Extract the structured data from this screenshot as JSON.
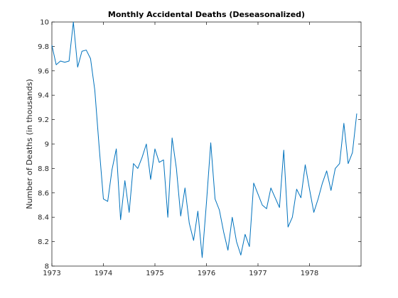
{
  "chart_data": {
    "type": "line",
    "title": "Monthly Accidental Deaths (Deseasonalized)",
    "xlabel": "",
    "ylabel": "Number of Deaths (in thousands)",
    "xlim": [
      1973,
      1979
    ],
    "ylim": [
      8,
      10
    ],
    "xticks": [
      1973,
      1974,
      1975,
      1976,
      1977,
      1978
    ],
    "yticks": [
      8,
      8.2,
      8.4,
      8.6,
      8.8,
      9,
      9.2,
      9.4,
      9.6,
      9.8,
      10
    ],
    "grid": false,
    "color": "#0072bd",
    "series": [
      {
        "x": [
          1973.0,
          1973.0833,
          1973.1667,
          1973.25,
          1973.3333,
          1973.4167,
          1973.5,
          1973.5833,
          1973.6667,
          1973.75,
          1973.8333,
          1973.9167,
          1974.0,
          1974.0833,
          1974.1667,
          1974.25,
          1974.3333,
          1974.4167,
          1974.5,
          1974.5833,
          1974.6667,
          1974.75,
          1974.8333,
          1974.9167,
          1975.0,
          1975.0833,
          1975.1667,
          1975.25,
          1975.3333,
          1975.4167,
          1975.5,
          1975.5833,
          1975.6667,
          1975.75,
          1975.8333,
          1975.9167,
          1976.0,
          1976.0833,
          1976.1667,
          1976.25,
          1976.3333,
          1976.4167,
          1976.5,
          1976.5833,
          1976.6667,
          1976.75,
          1976.8333,
          1976.9167,
          1977.0,
          1977.0833,
          1977.1667,
          1977.25,
          1977.3333,
          1977.4167,
          1977.5,
          1977.5833,
          1977.6667,
          1977.75,
          1977.8333,
          1977.9167,
          1978.0,
          1978.0833,
          1978.1667,
          1978.25,
          1978.3333,
          1978.4167,
          1978.5,
          1978.5833,
          1978.6667,
          1978.75,
          1978.8333,
          1978.9167
        ],
        "values": [
          9.81,
          9.65,
          9.68,
          9.67,
          9.68,
          10.0,
          9.63,
          9.76,
          9.77,
          9.7,
          9.44,
          8.98,
          8.55,
          8.53,
          8.79,
          8.96,
          8.38,
          8.7,
          8.44,
          8.84,
          8.8,
          8.89,
          9.0,
          8.71,
          8.96,
          8.85,
          8.87,
          8.4,
          9.05,
          8.8,
          8.41,
          8.64,
          8.35,
          8.21,
          8.45,
          8.07,
          8.52,
          9.01,
          8.55,
          8.46,
          8.28,
          8.13,
          8.4,
          8.2,
          8.09,
          8.26,
          8.16,
          8.68,
          8.59,
          8.5,
          8.47,
          8.64,
          8.56,
          8.48,
          8.95,
          8.32,
          8.4,
          8.63,
          8.56,
          8.83,
          8.63,
          8.44,
          8.55,
          8.68,
          8.78,
          8.62,
          8.8,
          8.84,
          9.17,
          8.84,
          8.93,
          9.25
        ]
      }
    ]
  }
}
